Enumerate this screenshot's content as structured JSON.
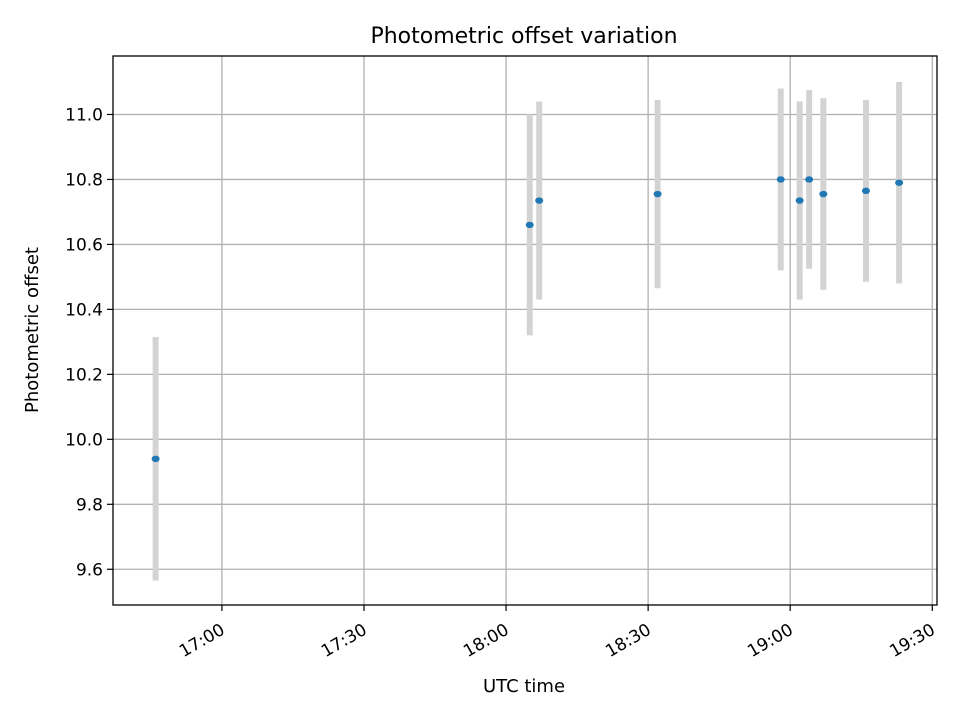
{
  "chart_data": {
    "type": "scatter",
    "title": "Photometric offset variation",
    "xlabel": "UTC time",
    "ylabel": "Photometric offset",
    "x_axis": {
      "kind": "time",
      "range": [
        "16:37",
        "19:31"
      ],
      "ticks": [
        "17:00",
        "17:30",
        "18:00",
        "18:30",
        "19:00",
        "19:30"
      ]
    },
    "y_axis": {
      "range": [
        9.49,
        11.18
      ],
      "ticks": [
        "9.6",
        "9.8",
        "10.0",
        "10.2",
        "10.4",
        "10.6",
        "10.8",
        "11.0"
      ]
    },
    "grid": true,
    "series": [
      {
        "marker_color": "#1f77b4",
        "errorbar_color": "#d3d3d3",
        "points": [
          {
            "time": "16:46",
            "y": 9.94,
            "err": 0.375
          },
          {
            "time": "18:05",
            "y": 10.66,
            "err": 0.34
          },
          {
            "time": "18:07",
            "y": 10.735,
            "err": 0.305
          },
          {
            "time": "18:32",
            "y": 10.755,
            "err": 0.29
          },
          {
            "time": "18:58",
            "y": 10.8,
            "err": 0.28
          },
          {
            "time": "19:02",
            "y": 10.735,
            "err": 0.305
          },
          {
            "time": "19:04",
            "y": 10.8,
            "err": 0.275
          },
          {
            "time": "19:07",
            "y": 10.755,
            "err": 0.295
          },
          {
            "time": "19:16",
            "y": 10.765,
            "err": 0.28
          },
          {
            "time": "19:23",
            "y": 10.79,
            "err": 0.31
          }
        ]
      }
    ]
  }
}
